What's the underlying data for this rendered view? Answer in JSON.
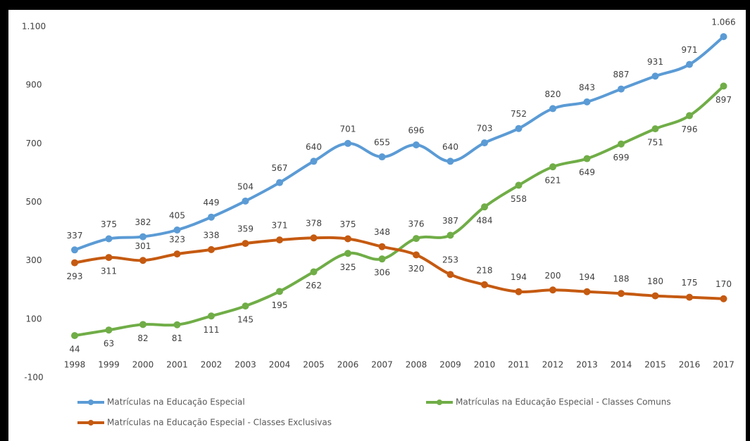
{
  "chart_data": {
    "type": "line",
    "categories": [
      "1998",
      "1999",
      "2000",
      "2001",
      "2002",
      "2003",
      "2004",
      "2005",
      "2006",
      "2007",
      "2008",
      "2009",
      "2010",
      "2011",
      "2012",
      "2013",
      "2014",
      "2015",
      "2016",
      "2017"
    ],
    "series": [
      {
        "name": "Matrículas na Educação Especial",
        "color": "#5b9bd5",
        "values": [
          337,
          375,
          382,
          405,
          449,
          504,
          567,
          640,
          701,
          655,
          696,
          640,
          703,
          752,
          820,
          843,
          887,
          931,
          971,
          1066
        ],
        "value_labels": [
          "337",
          "375",
          "382",
          "405",
          "449",
          "504",
          "567",
          "640",
          "701",
          "655",
          "696",
          "640",
          "703",
          "752",
          "820",
          "843",
          "887",
          "931",
          "971",
          "1.066"
        ]
      },
      {
        "name": "Matrículas na Educação Especial - Classes Comuns",
        "color": "#70ad47",
        "values": [
          44,
          63,
          82,
          81,
          111,
          145,
          195,
          262,
          325,
          306,
          376,
          387,
          484,
          558,
          621,
          649,
          699,
          751,
          796,
          897
        ]
      },
      {
        "name": "Matrículas na Educação Especial - Classes Exclusivas",
        "color": "#c55a11",
        "values": [
          293,
          311,
          301,
          323,
          338,
          359,
          371,
          378,
          375,
          348,
          320,
          253,
          218,
          194,
          200,
          194,
          188,
          180,
          175,
          170
        ]
      }
    ],
    "ylim": [
      -100,
      1100
    ],
    "yticks": [
      -100,
      100,
      300,
      500,
      700,
      900,
      {
        "value": 1100,
        "label": "1.100"
      }
    ]
  }
}
